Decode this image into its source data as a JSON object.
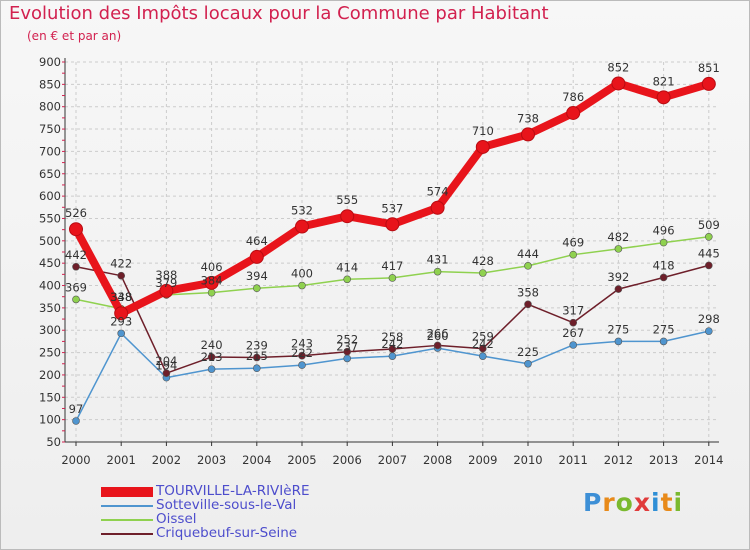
{
  "header": {
    "title": "Evolution des Impôts locaux pour la Commune par Habitant",
    "subtitle": "(en € et par an)"
  },
  "logo": {
    "text": "Proxiti"
  },
  "chart_data": {
    "type": "line",
    "title": "Evolution des Impôts locaux pour la Commune par Habitant",
    "subtitle": "(en € et par an)",
    "xlabel": "",
    "ylabel": "",
    "categories": [
      "2000",
      "2001",
      "2002",
      "2003",
      "2004",
      "2005",
      "2006",
      "2007",
      "2008",
      "2009",
      "2010",
      "2011",
      "2012",
      "2013",
      "2014"
    ],
    "ylim": [
      50,
      900
    ],
    "yticks": [
      50,
      100,
      150,
      200,
      250,
      300,
      350,
      400,
      450,
      500,
      550,
      600,
      650,
      700,
      750,
      800,
      850,
      900
    ],
    "grid": true,
    "legend_position": "bottom-left",
    "series": [
      {
        "name": "TOURVILLE-LA-RIVIèRE",
        "color": "#e8141b",
        "values": [
          526,
          338,
          388,
          406,
          464,
          532,
          555,
          537,
          574,
          710,
          738,
          786,
          852,
          821,
          851
        ]
      },
      {
        "name": "Sotteville-sous-le-Val",
        "color": "#4f95cf",
        "values": [
          97,
          293,
          194,
          213,
          215,
          222,
          237,
          242,
          260,
          242,
          225,
          267,
          275,
          275,
          298
        ]
      },
      {
        "name": "Oissel",
        "color": "#8fd14f",
        "values": [
          369,
          348,
          379,
          384,
          394,
          400,
          414,
          417,
          431,
          428,
          444,
          469,
          482,
          496,
          509
        ]
      },
      {
        "name": "Criquebeuf-sur-Seine",
        "color": "#6e1f2a",
        "values": [
          442,
          422,
          204,
          240,
          239,
          243,
          252,
          258,
          266,
          259,
          358,
          317,
          392,
          418,
          445
        ]
      }
    ]
  }
}
